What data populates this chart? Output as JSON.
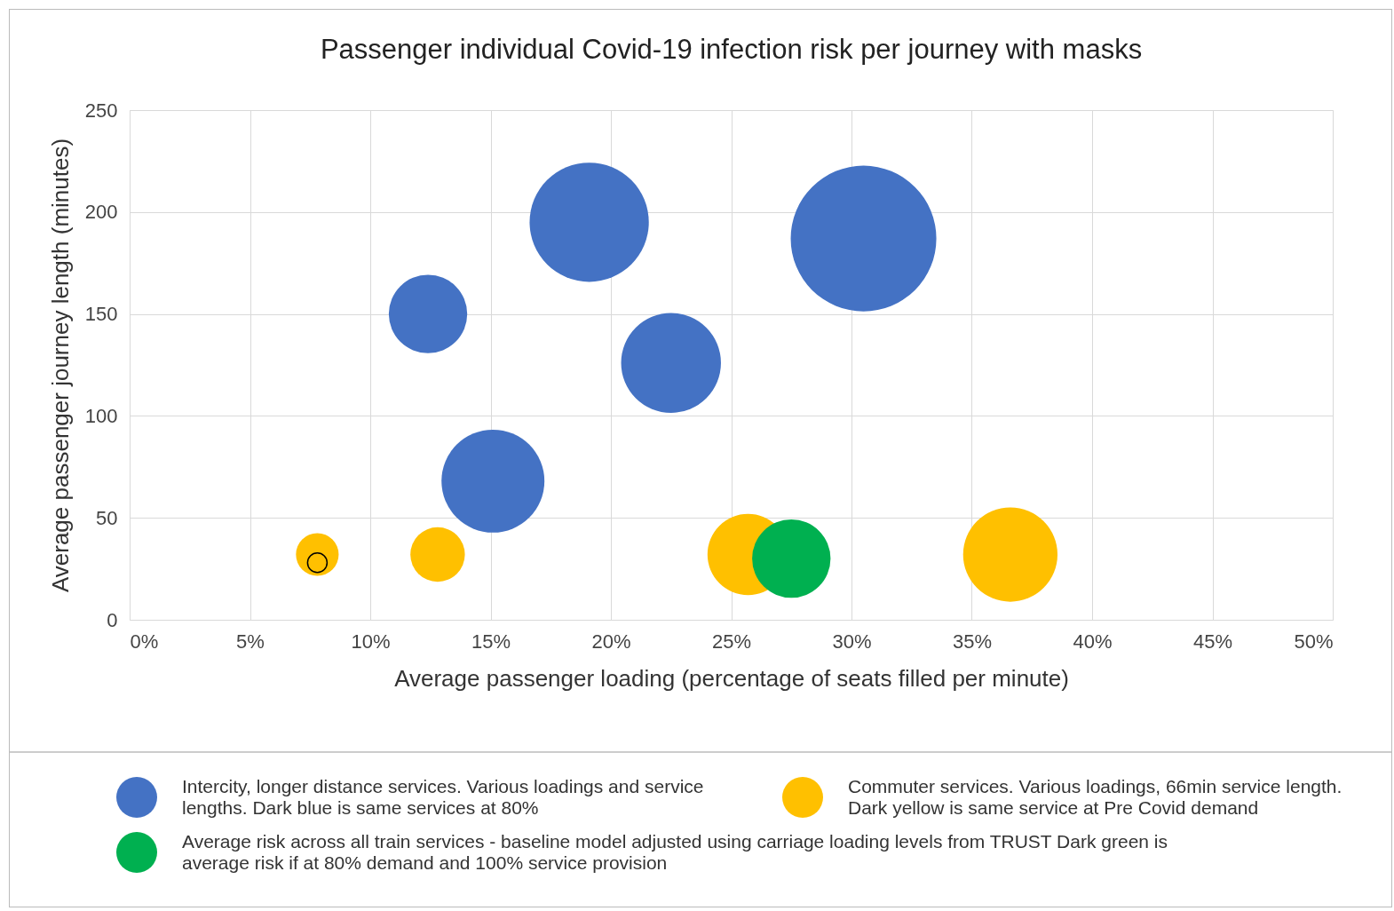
{
  "chart_data": {
    "type": "bubble",
    "title": "Passenger individual Covid-19 infection risk per journey with masks",
    "xlabel": "Average passenger loading (percentage of seats filled per minute)",
    "ylabel": "Average passenger journey length (minutes)",
    "xlim": [
      0,
      50
    ],
    "xticks": [
      {
        "value": 0,
        "label": "0%"
      },
      {
        "value": 5,
        "label": "5%"
      },
      {
        "value": 10,
        "label": "10%"
      },
      {
        "value": 15,
        "label": "15%"
      },
      {
        "value": 20,
        "label": "20%"
      },
      {
        "value": 25,
        "label": "25%"
      },
      {
        "value": 30,
        "label": "30%"
      },
      {
        "value": 35,
        "label": "35%"
      },
      {
        "value": 40,
        "label": "40%"
      },
      {
        "value": 45,
        "label": "45%"
      },
      {
        "value": 50,
        "label": "50%"
      }
    ],
    "ylim": [
      0,
      250
    ],
    "yticks": [
      0,
      50,
      100,
      150,
      200,
      250
    ],
    "grid": true,
    "legend": "bottom",
    "series": [
      {
        "name": "Intercity, longer distance services. Various loadings and service lengths. Dark blue is same services at 80%",
        "color": "#4472c4",
        "x": [
          12.4,
          19.1,
          22.5,
          15.1,
          30.5
        ],
        "values": [
          150,
          195,
          126,
          68,
          187
        ],
        "sizes": [
          0.29,
          0.67,
          0.47,
          0.5,
          1
        ]
      },
      {
        "name": "Commuter services. Various loadings, 66min service length. Dark yellow is same service at Pre Covid demand",
        "color": "#ffc000",
        "x": [
          7.8,
          12.8,
          25.7,
          36.6
        ],
        "values": [
          32,
          32,
          32,
          32
        ],
        "sizes": [
          0.086,
          0.14,
          0.31,
          0.42
        ]
      },
      {
        "name": "Average risk across all train services - baseline model adjusted using carriage loading levels from TRUST Dark green is average risk if at 80% demand and 100% service provision",
        "color": "#00b050",
        "x": [
          27.5
        ],
        "values": [
          30
        ],
        "sizes": [
          0.29
        ]
      },
      {
        "type": "scatter",
        "color": "#000000",
        "x": [
          7.8
        ],
        "values": [
          28
        ],
        "sizes": [
          0.018
        ]
      }
    ]
  }
}
